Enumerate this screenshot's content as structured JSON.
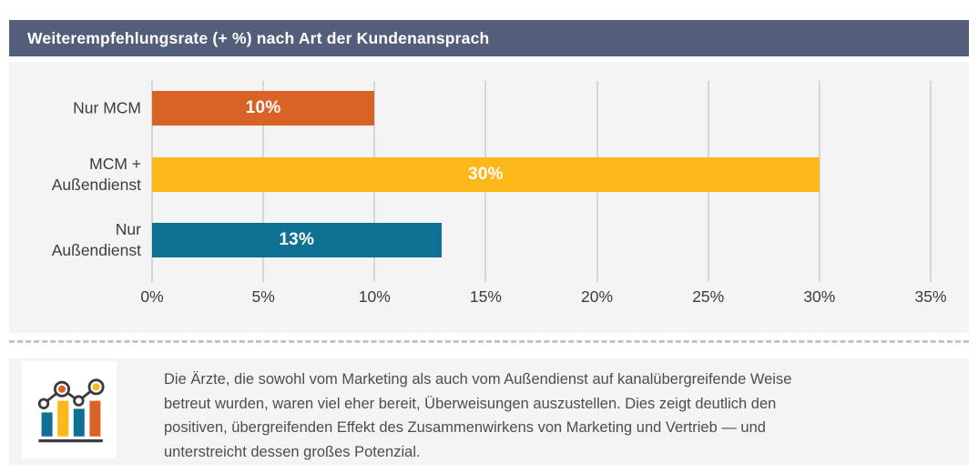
{
  "header": {
    "title": "Weiterempfehlungsrate (+ %) nach Art der Kundenansprach",
    "bg": "#535f7a"
  },
  "chart_data": {
    "type": "bar",
    "orientation": "horizontal",
    "title": "Weiterempfehlungsrate (+ %) nach Art der Kundenansprach",
    "categories": [
      "Nur MCM",
      "MCM +\nAußendienst",
      "Nur\nAußendienst"
    ],
    "values": [
      10,
      30,
      13
    ],
    "value_labels": [
      "10%",
      "30%",
      "13%"
    ],
    "bar_colors": [
      "#d96227",
      "#fcb718",
      "#0e7092"
    ],
    "xlim": [
      0,
      35
    ],
    "x_tick_values": [
      0,
      5,
      10,
      15,
      20,
      25,
      30,
      35
    ],
    "x_ticks": [
      "0%",
      "5%",
      "10%",
      "15%",
      "20%",
      "25%",
      "30%",
      "35%"
    ],
    "grid": true,
    "legend": false,
    "grid_color": "#d6d6d6",
    "background": "#f4f4f4"
  },
  "note": {
    "text": "Die Ärzte, die sowohl vom Marketing als auch vom Außendienst auf kanalübergreifende Weise\nbetreut wurden, waren viel eher bereit, Überweisungen auszustellen. Dies zeigt deutlich den\npositiven, übergreifenden Effekt des Zusammenwirkens von Marketing und Vertrieb — und\nunterstreicht dessen großes Potenzial."
  },
  "icon": {
    "name": "combo-chart-icon",
    "line_color": "#3b3b3b",
    "node_fills": [
      "#ffffff",
      "#d96227",
      "#ffffff",
      "#fcb718"
    ]
  }
}
